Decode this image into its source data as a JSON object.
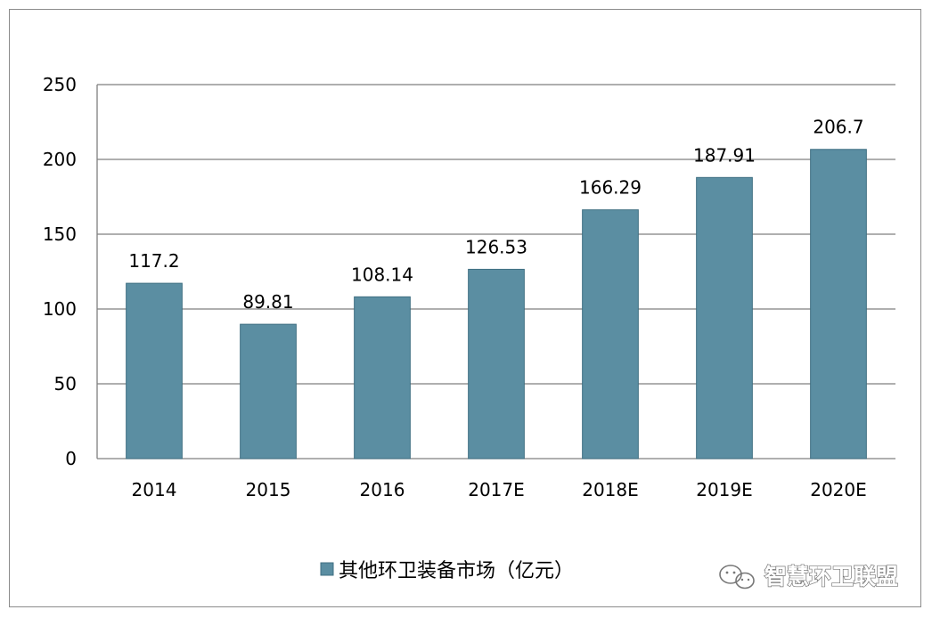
{
  "chart_data": {
    "type": "bar",
    "categories": [
      "2014",
      "2015",
      "2016",
      "2017E",
      "2018E",
      "2019E",
      "2020E"
    ],
    "series": [
      {
        "name": "其他环卫装备市场（亿元）",
        "values": [
          117.2,
          89.81,
          108.14,
          126.53,
          166.29,
          187.91,
          206.7
        ],
        "value_labels": [
          "117.2",
          "89.81",
          "108.14",
          "126.53",
          "166.29",
          "187.91",
          "206.7"
        ]
      }
    ],
    "ylim": [
      0,
      250
    ],
    "yticks": [
      0,
      50,
      100,
      150,
      200,
      250
    ],
    "grid": true,
    "legend_position": "bottom",
    "colors": {
      "bar": "#5b8ea2",
      "bar_border": "#3f6f82",
      "grid": "#7f7f7f"
    }
  },
  "watermark": {
    "text": "智慧环卫联盟",
    "icon": "wechat-icon"
  }
}
